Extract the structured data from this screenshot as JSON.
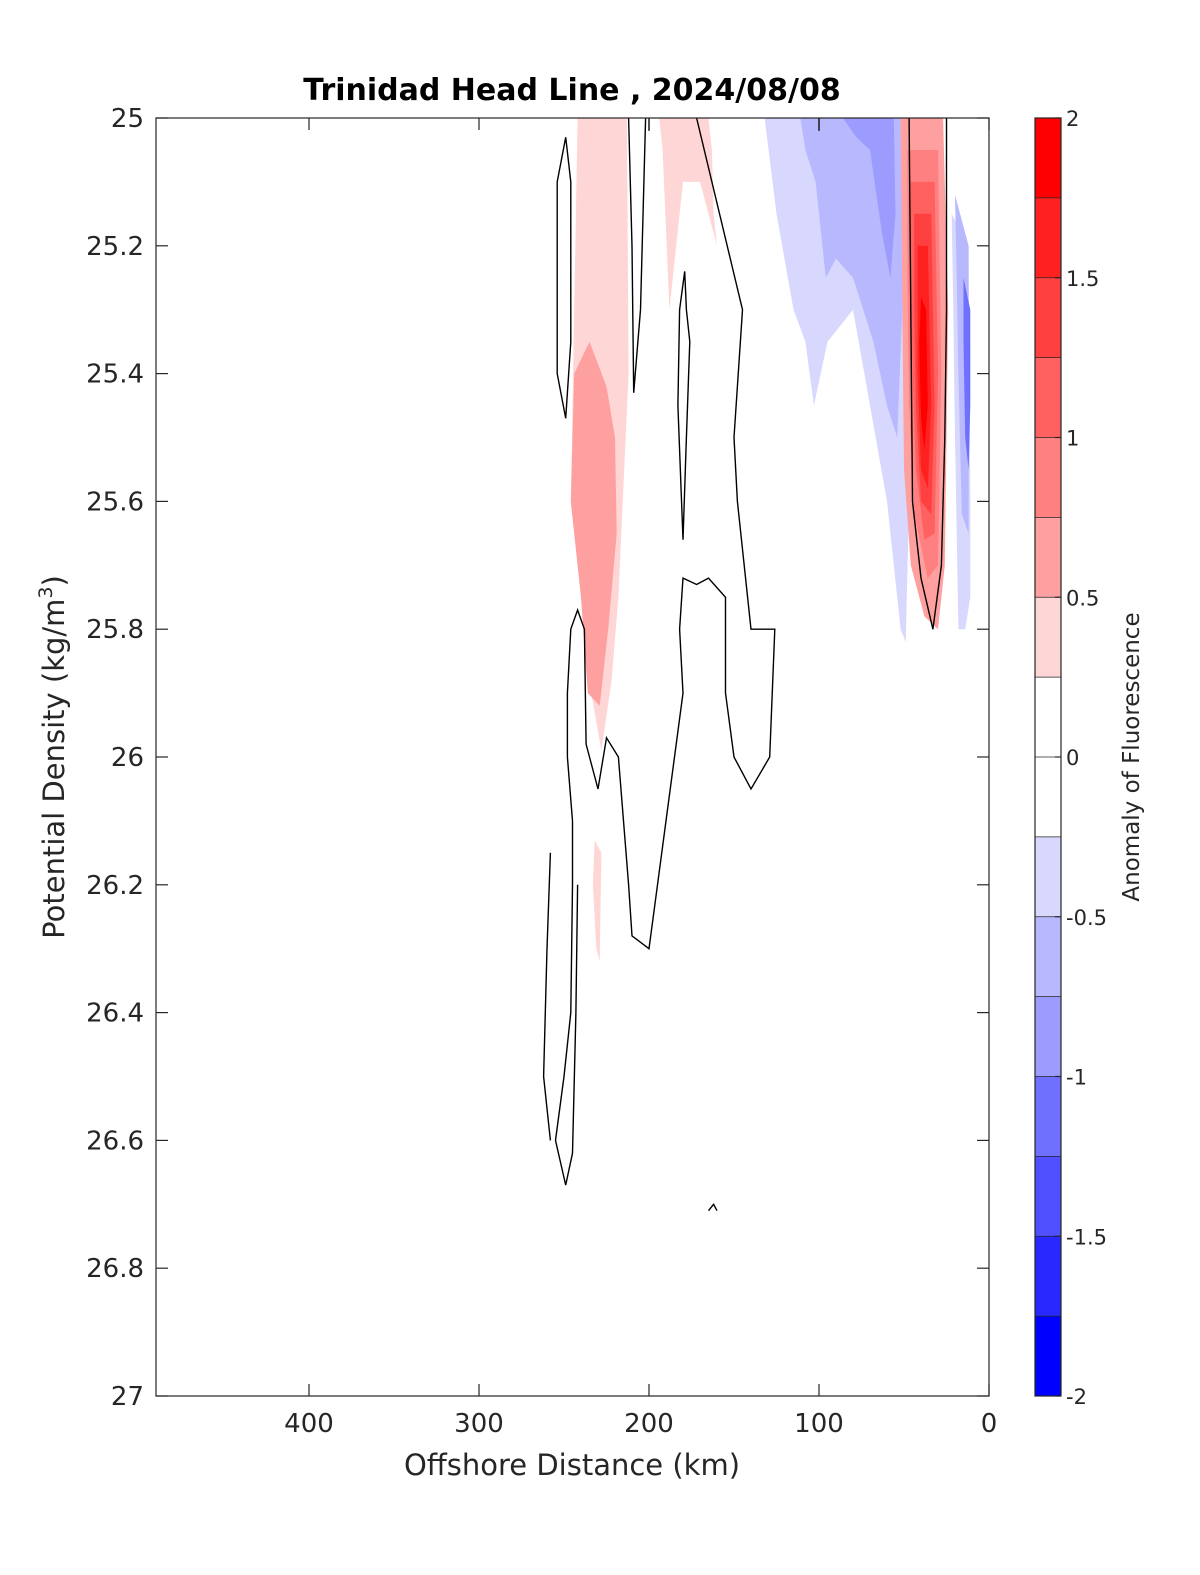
{
  "chart_data": {
    "type": "heatmap",
    "subtype": "filled-contour",
    "title": "Trinidad Head Line , 2024/08/08",
    "xlabel": "Offshore Distance (km)",
    "ylabel_main": "Potential Density (kg/m",
    "ylabel_sup": "3",
    "ylabel_end": ")",
    "xlim": [
      490,
      0
    ],
    "x_reversed": true,
    "ylim": [
      25,
      27
    ],
    "y_reversed": true,
    "xticks": [
      400,
      300,
      200,
      100,
      0
    ],
    "xtick_labels": [
      "400",
      "300",
      "200",
      "100",
      "0"
    ],
    "yticks": [
      25,
      25.2,
      25.4,
      25.6,
      25.8,
      26,
      26.2,
      26.4,
      26.6,
      26.8,
      27
    ],
    "ytick_labels": [
      "25",
      "25.2",
      "25.4",
      "25.6",
      "25.8",
      "26",
      "26.2",
      "26.4",
      "26.6",
      "26.8",
      "27"
    ],
    "colorbar": {
      "label": "Anomaly of Fluorescence",
      "range": [
        -2,
        2
      ],
      "ticks": [
        2,
        1.5,
        1,
        0.5,
        0,
        -0.5,
        -1,
        -1.5,
        -2
      ],
      "tick_labels": [
        "2",
        "1.5",
        "1",
        "0.5",
        "0",
        "-0.5",
        "-1",
        "-1.5",
        "-2"
      ],
      "levels": [
        {
          "lo": 1.75,
          "hi": 2.0,
          "color": "#ff0000"
        },
        {
          "lo": 1.5,
          "hi": 1.75,
          "color": "#ff2020"
        },
        {
          "lo": 1.25,
          "hi": 1.5,
          "color": "#ff4040"
        },
        {
          "lo": 1.0,
          "hi": 1.25,
          "color": "#ff6060"
        },
        {
          "lo": 0.75,
          "hi": 1.0,
          "color": "#ff8080"
        },
        {
          "lo": 0.5,
          "hi": 0.75,
          "color": "#ffa0a0"
        },
        {
          "lo": 0.25,
          "hi": 0.5,
          "color": "#ffd6d6"
        },
        {
          "lo": 0.0,
          "hi": 0.25,
          "color": "#ffffff"
        },
        {
          "lo": -0.25,
          "hi": 0.0,
          "color": "#ffffff"
        },
        {
          "lo": -0.5,
          "hi": -0.25,
          "color": "#d8d8ff"
        },
        {
          "lo": -0.75,
          "hi": -0.5,
          "color": "#b8b8ff"
        },
        {
          "lo": -1.0,
          "hi": -0.75,
          "color": "#9c9cff"
        },
        {
          "lo": -1.25,
          "hi": -1.0,
          "color": "#7070ff"
        },
        {
          "lo": -1.5,
          "hi": -1.25,
          "color": "#5050ff"
        },
        {
          "lo": -1.75,
          "hi": -1.5,
          "color": "#2828ff"
        },
        {
          "lo": -2.0,
          "hi": -1.75,
          "color": "#0000ff"
        }
      ]
    },
    "filled_regions": [
      {
        "level": 0.375,
        "color": "#ffd6d6",
        "points": [
          [
            238,
            25
          ],
          [
            213,
            25
          ],
          [
            212,
            25.4
          ],
          [
            218,
            25.75
          ],
          [
            222,
            25.88
          ],
          [
            228,
            25.99
          ],
          [
            234,
            25.9
          ],
          [
            240,
            25.75
          ],
          [
            246,
            25.6
          ],
          [
            244,
            25.3
          ],
          [
            242,
            25
          ]
        ]
      },
      {
        "level": 0.625,
        "color": "#ffa0a0",
        "points": [
          [
            235,
            25.35
          ],
          [
            244,
            25.4
          ],
          [
            246,
            25.6
          ],
          [
            240,
            25.75
          ],
          [
            236,
            25.9
          ],
          [
            229,
            25.92
          ],
          [
            224,
            25.8
          ],
          [
            219,
            25.65
          ],
          [
            220,
            25.5
          ],
          [
            225,
            25.42
          ]
        ]
      },
      {
        "level": 0.375,
        "color": "#ffd6d6",
        "points": [
          [
            194,
            25
          ],
          [
            165,
            25
          ],
          [
            163,
            25.05
          ],
          [
            162,
            25.15
          ],
          [
            160,
            25.2
          ],
          [
            170,
            25.1
          ],
          [
            180,
            25.1
          ],
          [
            188,
            25.3
          ],
          [
            192,
            25.05
          ]
        ]
      },
      {
        "level": 0.375,
        "color": "#ffd6d6",
        "points": [
          [
            232,
            26.13
          ],
          [
            228,
            26.15
          ],
          [
            229,
            26.32
          ],
          [
            231,
            26.3
          ],
          [
            233,
            26.2
          ]
        ]
      },
      {
        "level": -0.375,
        "color": "#d8d8ff",
        "points": [
          [
            132,
            25
          ],
          [
            50,
            25
          ],
          [
            48,
            25.3
          ],
          [
            47,
            25.6
          ],
          [
            49,
            25.82
          ],
          [
            52,
            25.8
          ],
          [
            56,
            25.7
          ],
          [
            60,
            25.6
          ],
          [
            70,
            25.45
          ],
          [
            80,
            25.3
          ],
          [
            95,
            25.35
          ],
          [
            103,
            25.45
          ],
          [
            108,
            25.35
          ],
          [
            115,
            25.3
          ],
          [
            125,
            25.15
          ]
        ]
      },
      {
        "level": -0.625,
        "color": "#b8b8ff",
        "points": [
          [
            111,
            25
          ],
          [
            52,
            25
          ],
          [
            51,
            25.3
          ],
          [
            54,
            25.5
          ],
          [
            60,
            25.45
          ],
          [
            68,
            25.35
          ],
          [
            80,
            25.25
          ],
          [
            90,
            25.22
          ],
          [
            96,
            25.25
          ],
          [
            102,
            25.1
          ],
          [
            108,
            25.05
          ]
        ]
      },
      {
        "level": -0.875,
        "color": "#9c9cff",
        "points": [
          [
            86,
            25
          ],
          [
            56,
            25
          ],
          [
            55,
            25.15
          ],
          [
            58,
            25.25
          ],
          [
            63,
            25.18
          ],
          [
            70,
            25.05
          ],
          [
            78,
            25.03
          ]
        ]
      },
      {
        "level": -0.375,
        "color": "#d8d8ff",
        "points": [
          [
            22,
            25.15
          ],
          [
            12,
            25.2
          ],
          [
            11,
            25.6
          ],
          [
            11,
            25.75
          ],
          [
            14,
            25.8
          ],
          [
            18,
            25.8
          ],
          [
            20,
            25.5
          ],
          [
            21,
            25.3
          ]
        ]
      },
      {
        "level": -0.625,
        "color": "#b8b8ff",
        "points": [
          [
            20,
            25.12
          ],
          [
            12,
            25.2
          ],
          [
            12,
            25.45
          ],
          [
            12,
            25.65
          ],
          [
            16,
            25.62
          ],
          [
            18,
            25.4
          ],
          [
            19,
            25.25
          ]
        ]
      },
      {
        "level": -1.125,
        "color": "#7070ff",
        "points": [
          [
            15,
            25.25
          ],
          [
            11,
            25.3
          ],
          [
            11,
            25.45
          ],
          [
            12,
            25.55
          ],
          [
            14,
            25.5
          ],
          [
            15,
            25.35
          ]
        ]
      },
      {
        "level": 0.625,
        "color": "#ffa0a0",
        "points": [
          [
            52,
            25
          ],
          [
            27,
            25
          ],
          [
            24,
            25.3
          ],
          [
            26,
            25.7
          ],
          [
            30,
            25.8
          ],
          [
            38,
            25.78
          ],
          [
            46,
            25.7
          ],
          [
            50,
            25.55
          ],
          [
            51,
            25.3
          ]
        ]
      },
      {
        "level": 0.875,
        "color": "#ff8080",
        "points": [
          [
            48,
            25.05
          ],
          [
            30,
            25.05
          ],
          [
            28,
            25.4
          ],
          [
            30,
            25.7
          ],
          [
            36,
            25.72
          ],
          [
            44,
            25.62
          ],
          [
            47,
            25.45
          ],
          [
            48,
            25.25
          ]
        ]
      },
      {
        "level": 1.125,
        "color": "#ff6060",
        "points": [
          [
            46,
            25.1
          ],
          [
            32,
            25.1
          ],
          [
            30,
            25.4
          ],
          [
            32,
            25.65
          ],
          [
            38,
            25.66
          ],
          [
            43,
            25.55
          ],
          [
            45,
            25.4
          ],
          [
            46,
            25.2
          ]
        ]
      },
      {
        "level": 1.375,
        "color": "#ff4040",
        "points": [
          [
            44,
            25.15
          ],
          [
            34,
            25.15
          ],
          [
            32,
            25.45
          ],
          [
            34,
            25.62
          ],
          [
            40,
            25.6
          ],
          [
            43,
            25.45
          ],
          [
            44,
            25.3
          ]
        ]
      },
      {
        "level": 1.625,
        "color": "#ff2020",
        "points": [
          [
            42,
            25.2
          ],
          [
            36,
            25.2
          ],
          [
            34,
            25.45
          ],
          [
            36,
            25.58
          ],
          [
            40,
            25.55
          ],
          [
            42,
            25.4
          ]
        ]
      },
      {
        "level": 1.875,
        "color": "#ff0000",
        "points": [
          [
            40,
            25.28
          ],
          [
            37,
            25.3
          ],
          [
            36,
            25.45
          ],
          [
            38,
            25.52
          ],
          [
            40,
            25.47
          ],
          [
            41,
            25.35
          ]
        ]
      }
    ],
    "zero_contours": [
      {
        "points": [
          [
            249,
            25.03
          ],
          [
            254,
            25.1
          ],
          [
            254,
            25.4
          ],
          [
            249,
            25.47
          ],
          [
            246,
            25.35
          ],
          [
            246,
            25.1
          ],
          [
            249,
            25.03
          ]
        ]
      },
      {
        "points": [
          [
            212,
            25
          ],
          [
            210,
            25.2
          ],
          [
            209,
            25.43
          ],
          [
            205,
            25.3
          ],
          [
            203,
            25.1
          ],
          [
            202,
            25
          ]
        ]
      },
      {
        "points": [
          [
            200,
            25
          ],
          [
            200,
            25.02
          ]
        ]
      },
      {
        "points": [
          [
            179,
            25.24
          ],
          [
            178,
            25.3
          ],
          [
            176,
            25.35
          ],
          [
            178,
            25.5
          ],
          [
            180,
            25.66
          ],
          [
            183,
            25.45
          ],
          [
            182,
            25.3
          ],
          [
            179,
            25.24
          ]
        ]
      },
      {
        "points": [
          [
            100,
            25
          ],
          [
            100,
            25.02
          ]
        ]
      },
      {
        "points": [
          [
            47,
            25
          ],
          [
            46,
            25.3
          ],
          [
            45,
            25.6
          ],
          [
            40,
            25.72
          ],
          [
            33,
            25.8
          ],
          [
            28,
            25.7
          ],
          [
            26,
            25.5
          ],
          [
            25,
            25.3
          ],
          [
            25,
            25
          ]
        ]
      },
      {
        "points": [
          [
            172,
            25
          ],
          [
            145,
            25.3
          ],
          [
            150,
            25.5
          ],
          [
            148,
            25.6
          ],
          [
            140,
            25.8
          ],
          [
            126,
            25.8
          ],
          [
            129,
            26
          ],
          [
            140,
            26.05
          ],
          [
            150,
            26
          ],
          [
            155,
            25.9
          ],
          [
            155,
            25.75
          ],
          [
            165,
            25.72
          ],
          [
            172,
            25.73
          ],
          [
            180,
            25.72
          ],
          [
            182,
            25.8
          ],
          [
            180,
            25.9
          ],
          [
            185,
            26
          ],
          [
            190,
            26.1
          ],
          [
            195,
            26.2
          ],
          [
            200,
            26.3
          ],
          [
            210,
            26.28
          ],
          [
            212,
            26.2
          ],
          [
            218,
            26.0
          ],
          [
            225,
            25.97
          ],
          [
            230,
            26.05
          ],
          [
            237,
            25.98
          ],
          [
            238,
            25.8
          ],
          [
            242,
            25.77
          ],
          [
            246,
            25.8
          ],
          [
            248,
            25.9
          ],
          [
            248,
            26.0
          ],
          [
            245,
            26.1
          ],
          [
            245,
            26.2
          ],
          [
            246,
            26.4
          ],
          [
            250,
            26.5
          ],
          [
            255,
            26.6
          ],
          [
            249,
            26.67
          ],
          [
            245,
            26.62
          ],
          [
            243,
            26.4
          ],
          [
            242,
            26.2
          ]
        ]
      },
      {
        "points": [
          [
            258,
            26.15
          ],
          [
            260,
            26.3
          ],
          [
            262,
            26.5
          ],
          [
            258,
            26.6
          ]
        ]
      },
      {
        "points": [
          [
            165,
            26.71
          ],
          [
            162,
            26.7
          ],
          [
            160,
            26.71
          ]
        ]
      }
    ]
  }
}
